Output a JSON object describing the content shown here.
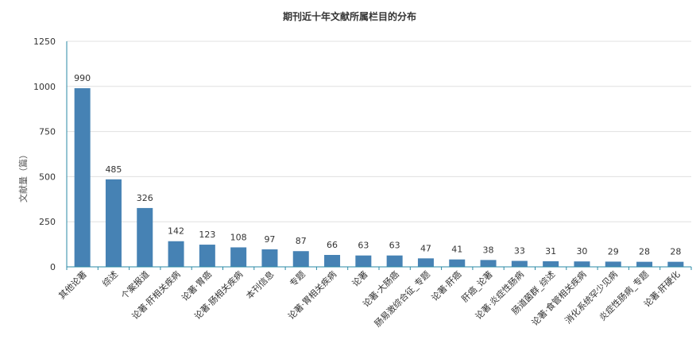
{
  "chart_data": {
    "type": "bar",
    "title": "期刊近十年文献所属栏目的分布",
    "xlabel": "",
    "ylabel": "文献量（篇）",
    "ylim": [
      0,
      1250
    ],
    "yticks": [
      0,
      250,
      500,
      750,
      1000,
      1250
    ],
    "grid": true,
    "legend": "none",
    "bar_color": "#4682b4",
    "categories": [
      "其他论著",
      "综述",
      "个案报道",
      "论著·肝相关疾病",
      "论著·胃癌",
      "论著·肠相关疾病",
      "本刊信息",
      "专题",
      "论著·胃相关疾病",
      "论著",
      "论著·大肠癌",
      "肠易激综合征_专题",
      "论著·肝癌",
      "肝癌_论著",
      "论著·炎症性肠病",
      "肠道菌群_综述",
      "论著·食管相关疾病",
      "消化系统罕少见病",
      "炎症性肠病_专题",
      "论著·肝硬化"
    ],
    "values": [
      990,
      485,
      326,
      142,
      123,
      108,
      97,
      87,
      66,
      63,
      63,
      47,
      41,
      38,
      33,
      31,
      30,
      29,
      28,
      28
    ]
  }
}
